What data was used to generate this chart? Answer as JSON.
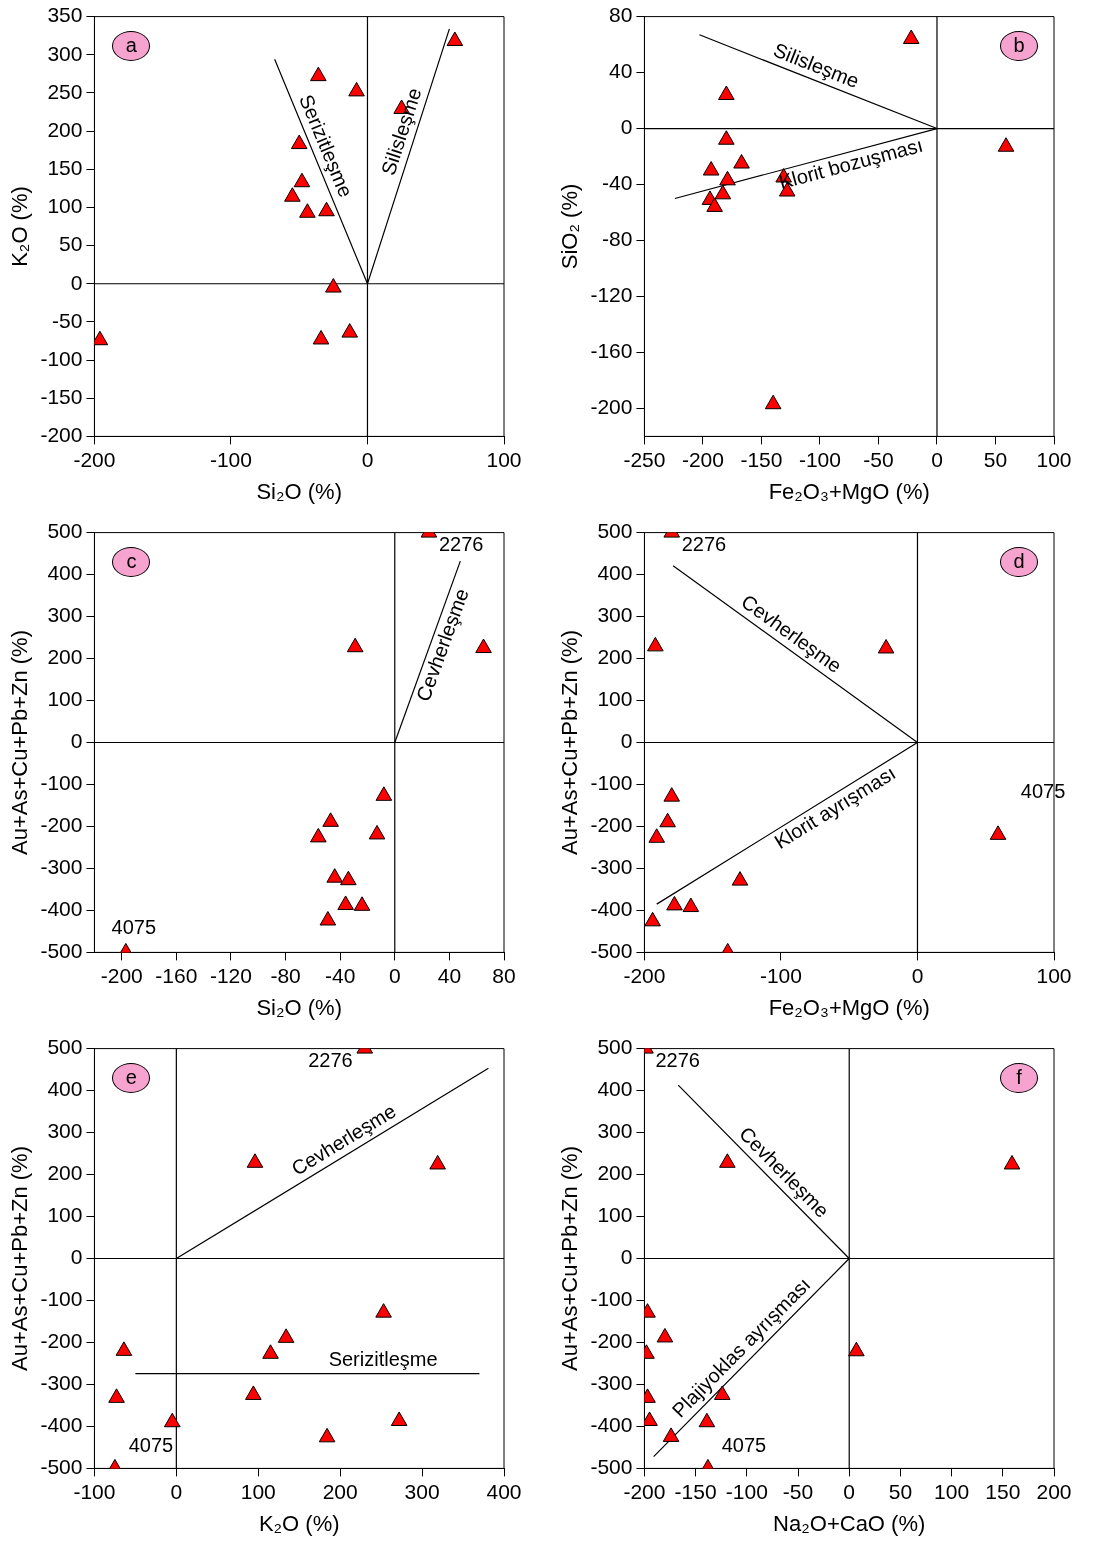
{
  "chart_data": [
    {
      "type": "scatter",
      "xlabel": "Si₂O (%)",
      "ylabel": "K₂O (%)",
      "xlim": [
        -200,
        100
      ],
      "ylim": [
        -200,
        350
      ],
      "xticks": [
        -200,
        -100,
        0,
        100
      ],
      "yticks": [
        -200,
        -150,
        -100,
        -50,
        0,
        50,
        100,
        150,
        200,
        250,
        300,
        350
      ],
      "marker": "triangle",
      "annotations": [
        "a",
        "Serizitleşme",
        "Silisleşme"
      ],
      "series": [
        {
          "type": "scatter",
          "color": "#ff0000",
          "x": [
            -196,
            -36,
            -8,
            25,
            64,
            -50,
            -48,
            -55,
            -44,
            -30,
            -25,
            -34,
            -13
          ],
          "values": [
            -74,
            272,
            252,
            229,
            318,
            183,
            133,
            114,
            93,
            95,
            -5,
            -73,
            -64
          ]
        },
        {
          "type": "line",
          "color": "#000000",
          "marker": "none",
          "x": [
            -68,
            0,
            60
          ],
          "values": [
            294,
            0,
            334
          ]
        },
        {
          "type": "line",
          "color": "#000000",
          "marker": "none",
          "x": [
            0,
            0
          ],
          "values": [
            -200,
            350
          ]
        },
        {
          "type": "line",
          "color": "#000000",
          "marker": "none",
          "x": [
            -200,
            100
          ],
          "values": [
            0,
            0
          ]
        }
      ]
    },
    {
      "type": "scatter",
      "xlabel": "Fe₂O₃+MgO (%)",
      "ylabel": "SiO₂ (%)",
      "xlim": [
        -250,
        100
      ],
      "ylim": [
        -220,
        80
      ],
      "xticks": [
        -250,
        -200,
        -150,
        -100,
        -50,
        0,
        50,
        100
      ],
      "yticks": [
        -200,
        -160,
        -120,
        -80,
        -40,
        0,
        40,
        80
      ],
      "marker": "triangle",
      "annotations": [
        "b",
        "Silisleşme",
        "Klorit bozuşması"
      ],
      "series": [
        {
          "type": "scatter",
          "color": "#ff0000",
          "x": [
            -22,
            -180,
            -180,
            -167,
            -193,
            -179,
            -131,
            -128,
            -194,
            -183,
            -190,
            -140,
            59
          ],
          "values": [
            64,
            24,
            -8,
            -25,
            -30,
            -37,
            -35,
            -45,
            -51,
            -47,
            -56,
            -197,
            -13
          ]
        },
        {
          "type": "line",
          "color": "#000000",
          "marker": "none",
          "x": [
            -203,
            0,
            -224
          ],
          "values": [
            67,
            0,
            -50
          ]
        },
        {
          "type": "line",
          "color": "#000000",
          "marker": "none",
          "x": [
            0,
            0
          ],
          "values": [
            -220,
            80
          ]
        },
        {
          "type": "line",
          "color": "#000000",
          "marker": "none",
          "x": [
            -250,
            100
          ],
          "values": [
            0,
            0
          ]
        }
      ]
    },
    {
      "type": "scatter",
      "xlabel": "Si₂O (%)",
      "ylabel": "Au+As+Cu+Pb+Zn (%)",
      "xlim": [
        -220,
        80
      ],
      "ylim": [
        -500,
        500
      ],
      "xticks": [
        -200,
        -160,
        -120,
        -80,
        -40,
        0,
        40,
        80
      ],
      "yticks": [
        -500,
        -400,
        -300,
        -200,
        -100,
        0,
        100,
        200,
        300,
        400,
        500
      ],
      "marker": "triangle",
      "annotations": [
        "c",
        "Cevherleşme",
        "2276",
        "4075"
      ],
      "series": [
        {
          "type": "scatter",
          "color": "#ff0000",
          "x": [
            25,
            -29,
            65,
            -8,
            -47,
            -56,
            -13,
            -44,
            -34,
            -36,
            -24,
            -49,
            -197
          ],
          "values": [
            500,
            227,
            225,
            -127,
            -189,
            -226,
            -219,
            -322,
            -328,
            -387,
            -389,
            -424,
            -500
          ]
        },
        {
          "type": "line",
          "color": "#000000",
          "marker": "none",
          "x": [
            0,
            48
          ],
          "values": [
            0,
            432
          ]
        },
        {
          "type": "line",
          "color": "#000000",
          "marker": "none",
          "x": [
            0,
            0
          ],
          "values": [
            -500,
            500
          ]
        },
        {
          "type": "line",
          "color": "#000000",
          "marker": "none",
          "x": [
            -220,
            80
          ],
          "values": [
            0,
            0
          ]
        }
      ]
    },
    {
      "type": "scatter",
      "xlabel": "Fe₂O₃+MgO (%)",
      "ylabel": "Au+As+Cu+Pb+Zn (%)",
      "xlim": [
        -200,
        100
      ],
      "ylim": [
        -500,
        500
      ],
      "xticks": [
        -200,
        -100,
        0,
        100
      ],
      "yticks": [
        -500,
        -400,
        -300,
        -200,
        -100,
        0,
        100,
        200,
        300,
        400,
        500
      ],
      "marker": "triangle",
      "annotations": [
        "d",
        "Cevherleşme",
        "Klorit ayrışması",
        "2276",
        "4075"
      ],
      "series": [
        {
          "type": "scatter",
          "color": "#ff0000",
          "x": [
            -180,
            -192,
            -23,
            -180,
            -183,
            -191,
            59,
            -130,
            -178,
            -166,
            -194,
            -139
          ],
          "values": [
            500,
            229,
            224,
            -129,
            -190,
            -227,
            -220,
            -329,
            -388,
            -392,
            -426,
            -500
          ]
        },
        {
          "type": "line",
          "color": "#000000",
          "marker": "none",
          "x": [
            -179,
            0,
            -191
          ],
          "values": [
            421,
            0,
            -385
          ]
        },
        {
          "type": "line",
          "color": "#000000",
          "marker": "none",
          "x": [
            0,
            0
          ],
          "values": [
            -500,
            500
          ]
        },
        {
          "type": "line",
          "color": "#000000",
          "marker": "none",
          "x": [
            -200,
            100
          ],
          "values": [
            0,
            0
          ]
        }
      ]
    },
    {
      "type": "scatter",
      "xlabel": "K₂O (%)",
      "ylabel": "Au+As+Cu+Pb+Zn (%)",
      "xlim": [
        -100,
        400
      ],
      "ylim": [
        -500,
        500
      ],
      "xticks": [
        -100,
        0,
        100,
        200,
        300,
        400
      ],
      "yticks": [
        -500,
        -400,
        -300,
        -200,
        -100,
        0,
        100,
        200,
        300,
        400,
        500
      ],
      "marker": "triangle",
      "annotations": [
        "e",
        "Cevherleşme",
        "Serizitleşme",
        "2276",
        "4075"
      ],
      "series": [
        {
          "type": "scatter",
          "color": "#ff0000",
          "x": [
            230,
            96,
            319,
            253,
            134,
            115,
            -64,
            -73,
            94,
            -5,
            184,
            272,
            -75
          ],
          "values": [
            500,
            228,
            224,
            -129,
            -189,
            -227,
            -220,
            -332,
            -325,
            -390,
            -426,
            -387,
            -500
          ]
        },
        {
          "type": "line",
          "color": "#000000",
          "marker": "none",
          "x": [
            0,
            381
          ],
          "values": [
            0,
            453
          ]
        },
        {
          "type": "line",
          "color": "#000000",
          "marker": "none",
          "x": [
            -50,
            370
          ],
          "values": [
            -274,
            -274
          ]
        },
        {
          "type": "line",
          "color": "#000000",
          "marker": "none",
          "x": [
            0,
            0
          ],
          "values": [
            -500,
            500
          ]
        },
        {
          "type": "line",
          "color": "#000000",
          "marker": "none",
          "x": [
            -100,
            400
          ],
          "values": [
            0,
            0
          ]
        }
      ]
    },
    {
      "type": "scatter",
      "xlabel": "Na₂O+CaO (%)",
      "ylabel": "Au+As+Cu+Pb+Zn (%)",
      "xlim": [
        -200,
        200
      ],
      "ylim": [
        -500,
        500
      ],
      "xticks": [
        -200,
        -150,
        -100,
        -50,
        0,
        50,
        100,
        150,
        200
      ],
      "yticks": [
        -500,
        -400,
        -300,
        -200,
        -100,
        0,
        100,
        200,
        300,
        400,
        500
      ],
      "marker": "triangle",
      "annotations": [
        "f",
        "Cevherleşme",
        "Plajiyoklas ayrışması",
        "2276",
        "4075"
      ],
      "series": [
        {
          "type": "scatter",
          "color": "#ff0000",
          "x": [
            -199,
            -119,
            159,
            -197,
            -180,
            -198,
            7,
            -197,
            -124,
            -195,
            -139,
            -174,
            -138
          ],
          "values": [
            500,
            228,
            224,
            -129,
            -188,
            -227,
            -221,
            -332,
            -325,
            -387,
            -390,
            -425,
            -500
          ]
        },
        {
          "type": "line",
          "color": "#000000",
          "marker": "none",
          "x": [
            -167,
            0,
            -191
          ],
          "values": [
            413,
            0,
            -472
          ]
        },
        {
          "type": "line",
          "color": "#000000",
          "marker": "none",
          "x": [
            0,
            0
          ],
          "values": [
            -500,
            500
          ]
        },
        {
          "type": "line",
          "color": "#000000",
          "marker": "none",
          "x": [
            -200,
            200
          ],
          "values": [
            0,
            0
          ]
        }
      ]
    }
  ]
}
